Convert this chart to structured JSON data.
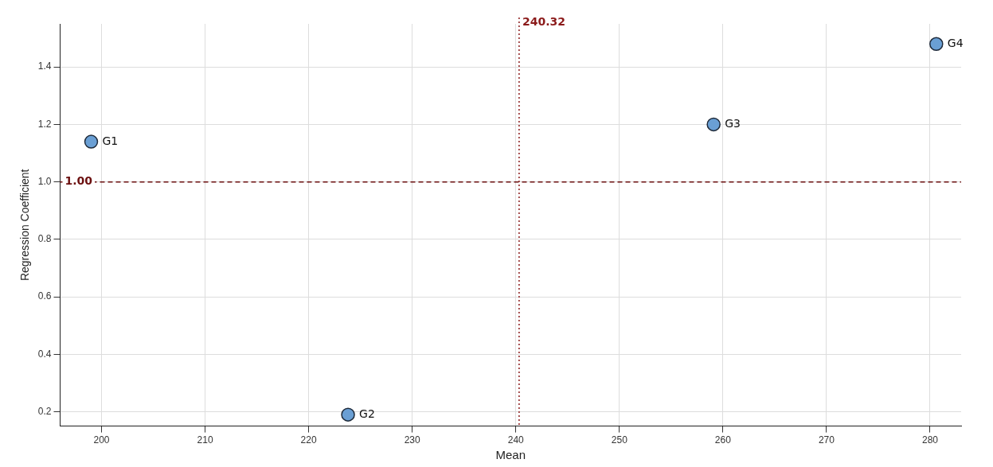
{
  "chart_data": {
    "type": "scatter",
    "xlabel": "Mean",
    "ylabel": "Regression Coefficient",
    "x": [
      199,
      223.8,
      259.1,
      280.6
    ],
    "values": [
      1.14,
      0.19,
      1.2,
      1.48
    ],
    "color": "#6a9fd4",
    "marker": "circle",
    "xlim": [
      196,
      283
    ],
    "ylim": [
      0.15,
      1.55
    ],
    "xticks": [
      200,
      210,
      220,
      230,
      240,
      250,
      260,
      270,
      280
    ],
    "yticks": [
      0.2,
      0.4,
      0.6,
      0.8,
      {
        "value": 1.0,
        "label": "1.0"
      },
      1.2,
      1.4
    ],
    "grid": true,
    "ref_lines": [
      {
        "axis": "x",
        "value": 240.32,
        "label": "240.32",
        "color": "#8b1a1a",
        "line_style": "dotted"
      },
      {
        "axis": "y",
        "value": 1.0,
        "label": "1.00",
        "color": "#6b0f0f",
        "line_style": "dashed"
      }
    ],
    "annotations": [
      {
        "text": "G1",
        "x": 199,
        "y": 1.14
      },
      {
        "text": "G2",
        "x": 223.8,
        "y": 0.19
      },
      {
        "text": "G3",
        "x": 259.1,
        "y": 1.2
      },
      {
        "text": "G4",
        "x": 280.6,
        "y": 1.48
      }
    ]
  }
}
